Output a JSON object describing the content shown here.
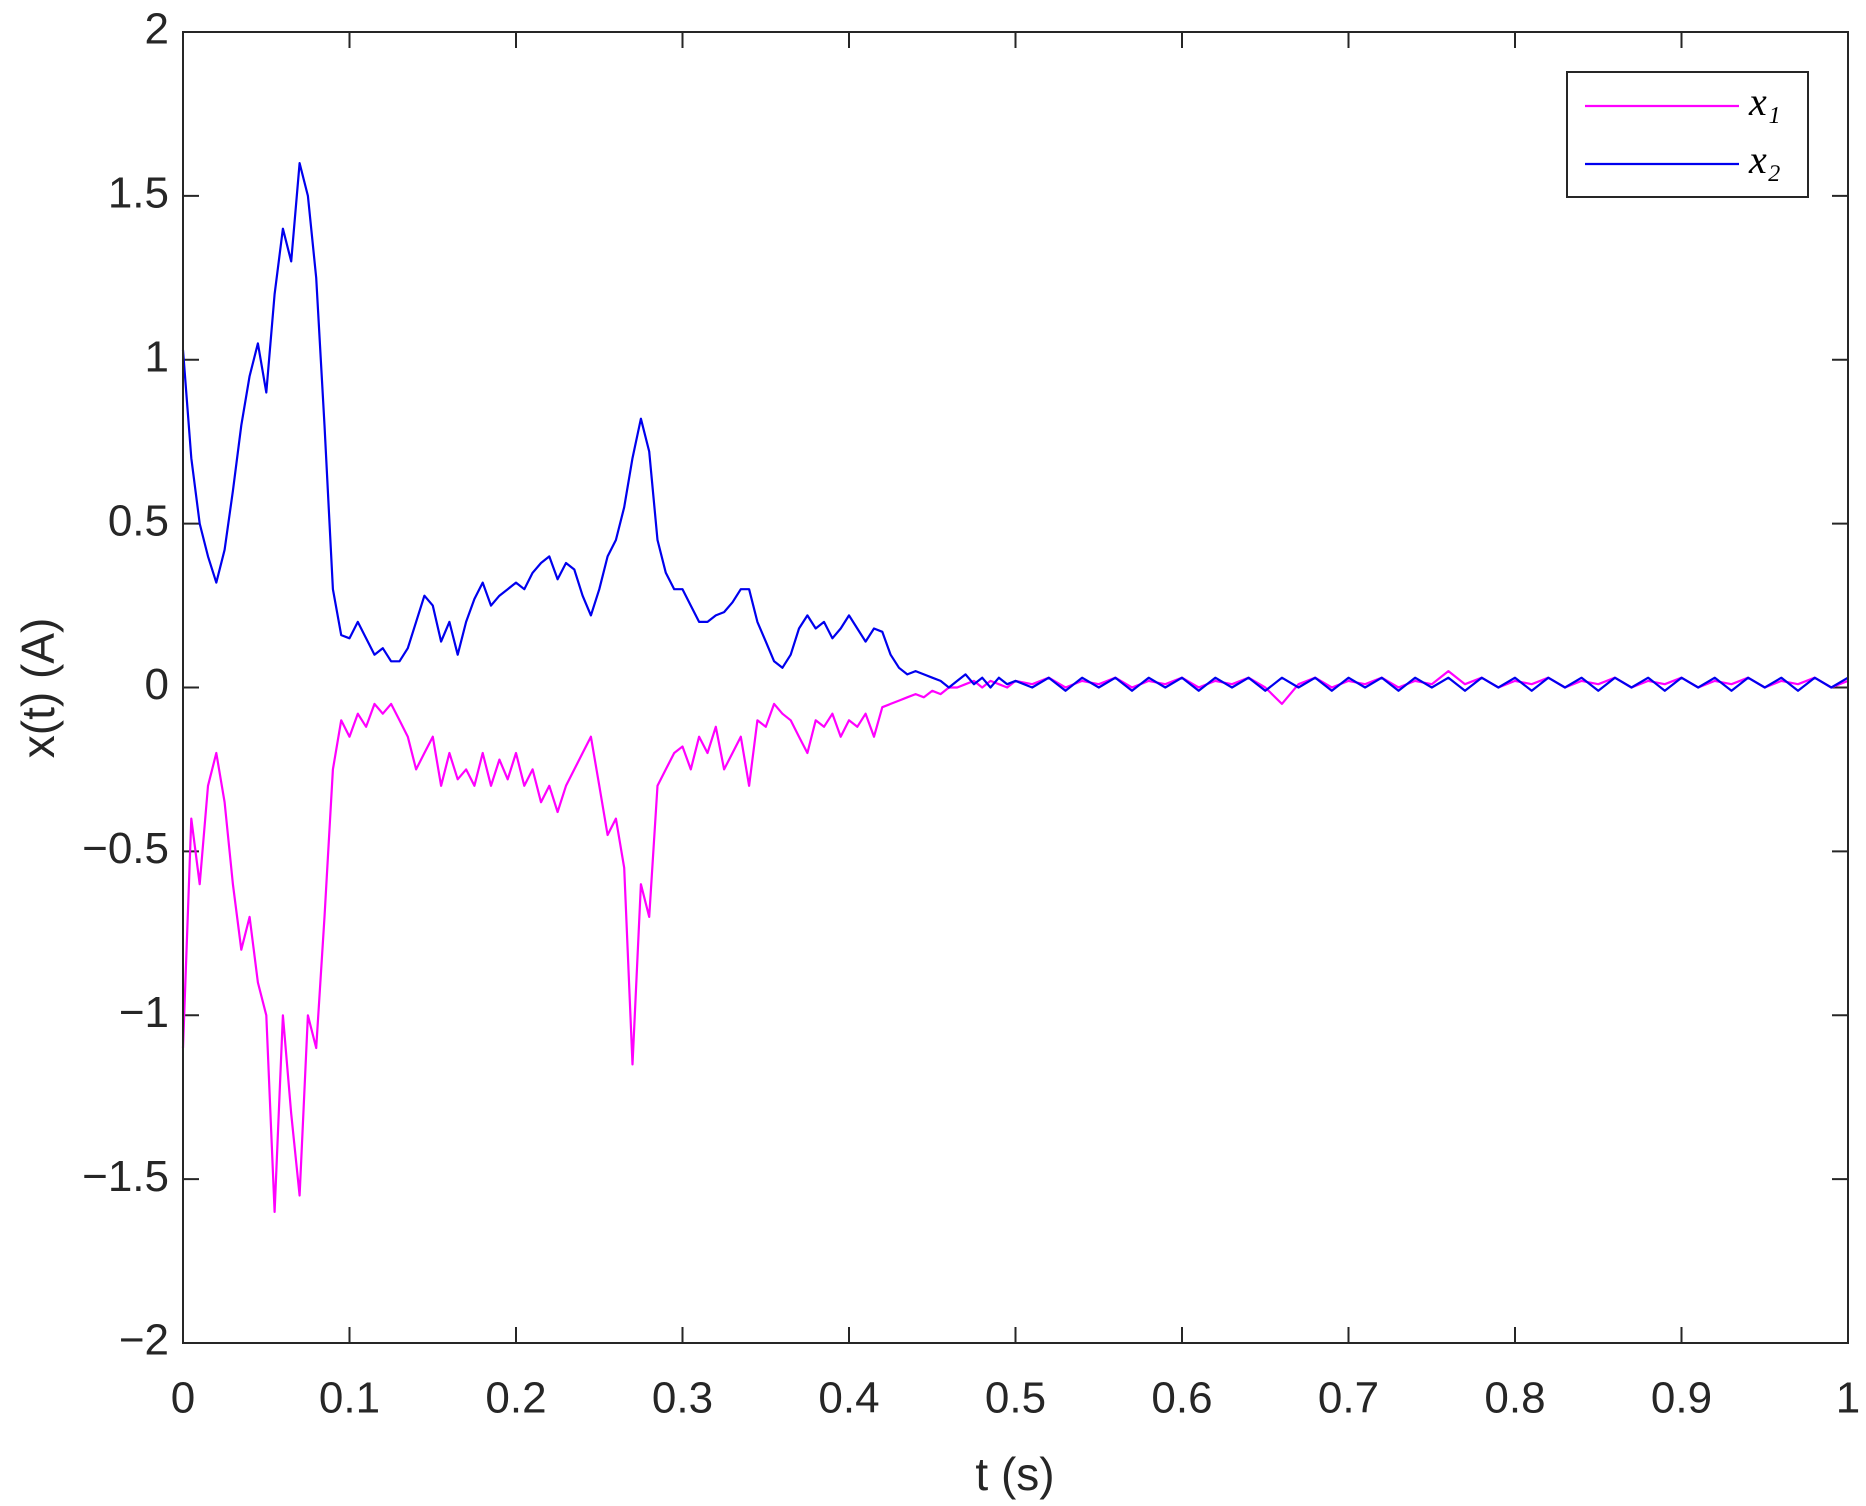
{
  "chart_data": {
    "type": "line",
    "xlabel": "t (s)",
    "ylabel": "x(t) (A)",
    "xlim": [
      0,
      1
    ],
    "ylim": [
      -2,
      2
    ],
    "xticks": [
      0,
      0.1,
      0.2,
      0.3,
      0.4,
      0.5,
      0.6,
      0.7,
      0.8,
      0.9,
      1
    ],
    "yticks": [
      {
        "value": -2,
        "label": "−2"
      },
      {
        "value": -1.5,
        "label": "−1.5"
      },
      {
        "value": -1,
        "label": "−1"
      },
      {
        "value": -0.5,
        "label": "−0.5"
      },
      0,
      0.5,
      1,
      1.5,
      2
    ],
    "legend": "top-right",
    "grid": false,
    "x": [
      0,
      0.005,
      0.01,
      0.015,
      0.02,
      0.025,
      0.03,
      0.035,
      0.04,
      0.045,
      0.05,
      0.055,
      0.06,
      0.065,
      0.07,
      0.075,
      0.08,
      0.085,
      0.09,
      0.095,
      0.1,
      0.105,
      0.11,
      0.115,
      0.12,
      0.125,
      0.13,
      0.135,
      0.14,
      0.145,
      0.15,
      0.155,
      0.16,
      0.165,
      0.17,
      0.175,
      0.18,
      0.185,
      0.19,
      0.195,
      0.2,
      0.205,
      0.21,
      0.215,
      0.22,
      0.225,
      0.23,
      0.235,
      0.24,
      0.245,
      0.25,
      0.255,
      0.26,
      0.265,
      0.27,
      0.275,
      0.28,
      0.285,
      0.29,
      0.295,
      0.3,
      0.305,
      0.31,
      0.315,
      0.32,
      0.325,
      0.33,
      0.335,
      0.34,
      0.345,
      0.35,
      0.355,
      0.36,
      0.365,
      0.37,
      0.375,
      0.38,
      0.385,
      0.39,
      0.395,
      0.4,
      0.405,
      0.41,
      0.415,
      0.42,
      0.425,
      0.43,
      0.435,
      0.44,
      0.445,
      0.45,
      0.455,
      0.46,
      0.465,
      0.47,
      0.475,
      0.48,
      0.485,
      0.49,
      0.495,
      0.5,
      0.51,
      0.52,
      0.53,
      0.54,
      0.55,
      0.56,
      0.57,
      0.58,
      0.59,
      0.6,
      0.61,
      0.62,
      0.63,
      0.64,
      0.65,
      0.66,
      0.67,
      0.68,
      0.69,
      0.7,
      0.71,
      0.72,
      0.73,
      0.74,
      0.75,
      0.76,
      0.77,
      0.78,
      0.79,
      0.8,
      0.81,
      0.82,
      0.83,
      0.84,
      0.85,
      0.86,
      0.87,
      0.88,
      0.89,
      0.9,
      0.91,
      0.92,
      0.93,
      0.94,
      0.95,
      0.96,
      0.97,
      0.98,
      0.99,
      1
    ],
    "series": [
      {
        "name": "x₁",
        "color": "#ff00ff",
        "values": [
          -1.1,
          -0.4,
          -0.6,
          -0.3,
          -0.2,
          -0.35,
          -0.6,
          -0.8,
          -0.7,
          -0.9,
          -1.0,
          -1.6,
          -1.0,
          -1.3,
          -1.55,
          -1.0,
          -1.1,
          -0.7,
          -0.25,
          -0.1,
          -0.15,
          -0.08,
          -0.12,
          -0.05,
          -0.08,
          -0.05,
          -0.1,
          -0.15,
          -0.25,
          -0.2,
          -0.15,
          -0.3,
          -0.2,
          -0.28,
          -0.25,
          -0.3,
          -0.2,
          -0.3,
          -0.22,
          -0.28,
          -0.2,
          -0.3,
          -0.25,
          -0.35,
          -0.3,
          -0.38,
          -0.3,
          -0.25,
          -0.2,
          -0.15,
          -0.3,
          -0.45,
          -0.4,
          -0.55,
          -1.15,
          -0.6,
          -0.7,
          -0.3,
          -0.25,
          -0.2,
          -0.18,
          -0.25,
          -0.15,
          -0.2,
          -0.12,
          -0.25,
          -0.2,
          -0.15,
          -0.3,
          -0.1,
          -0.12,
          -0.05,
          -0.08,
          -0.1,
          -0.15,
          -0.2,
          -0.1,
          -0.12,
          -0.08,
          -0.15,
          -0.1,
          -0.12,
          -0.08,
          -0.15,
          -0.06,
          -0.05,
          -0.04,
          -0.03,
          -0.02,
          -0.03,
          -0.01,
          -0.02,
          0,
          0,
          0.01,
          0.02,
          0,
          0.02,
          0.01,
          0,
          0.02,
          0.01,
          0.03,
          0,
          0.02,
          0.01,
          0.03,
          0,
          0.02,
          0.01,
          0.03,
          0,
          0.02,
          0.01,
          0.03,
          0,
          -0.05,
          0.01,
          0.03,
          0,
          0.02,
          0.01,
          0.03,
          0,
          0.02,
          0.01,
          0.05,
          0.01,
          0.03,
          0,
          0.02,
          0.01,
          0.03,
          0,
          0.02,
          0.01,
          0.03,
          0,
          0.02,
          0.01,
          0.03,
          0,
          0.02,
          0.01,
          0.03,
          0,
          0.02,
          0.01,
          0.03,
          0,
          0.02
        ]
      },
      {
        "name": "x₂",
        "color": "#0000ee",
        "values": [
          1.03,
          0.7,
          0.5,
          0.4,
          0.32,
          0.42,
          0.6,
          0.8,
          0.95,
          1.05,
          0.9,
          1.2,
          1.4,
          1.3,
          1.6,
          1.5,
          1.25,
          0.8,
          0.3,
          0.16,
          0.15,
          0.2,
          0.15,
          0.1,
          0.12,
          0.08,
          0.08,
          0.12,
          0.2,
          0.28,
          0.25,
          0.14,
          0.2,
          0.1,
          0.2,
          0.27,
          0.32,
          0.25,
          0.28,
          0.3,
          0.32,
          0.3,
          0.35,
          0.38,
          0.4,
          0.33,
          0.38,
          0.36,
          0.28,
          0.22,
          0.3,
          0.4,
          0.45,
          0.55,
          0.7,
          0.82,
          0.72,
          0.45,
          0.35,
          0.3,
          0.3,
          0.25,
          0.2,
          0.2,
          0.22,
          0.23,
          0.26,
          0.3,
          0.3,
          0.2,
          0.14,
          0.08,
          0.06,
          0.1,
          0.18,
          0.22,
          0.18,
          0.2,
          0.15,
          0.18,
          0.22,
          0.18,
          0.14,
          0.18,
          0.17,
          0.1,
          0.06,
          0.04,
          0.05,
          0.04,
          0.03,
          0.02,
          0,
          0.02,
          0.04,
          0.01,
          0.03,
          0,
          0.03,
          0.01,
          0.02,
          0,
          0.03,
          -0.01,
          0.03,
          0,
          0.03,
          -0.01,
          0.03,
          0,
          0.03,
          -0.01,
          0.03,
          0,
          0.03,
          -0.01,
          0.03,
          0,
          0.03,
          -0.01,
          0.03,
          0,
          0.03,
          -0.01,
          0.03,
          0,
          0.03,
          -0.01,
          0.03,
          0,
          0.03,
          -0.01,
          0.03,
          0,
          0.03,
          -0.01,
          0.03,
          0,
          0.03,
          -0.01,
          0.03,
          0,
          0.03,
          -0.01,
          0.03,
          0,
          0.03,
          -0.01,
          0.03,
          0,
          0.03
        ]
      }
    ]
  }
}
